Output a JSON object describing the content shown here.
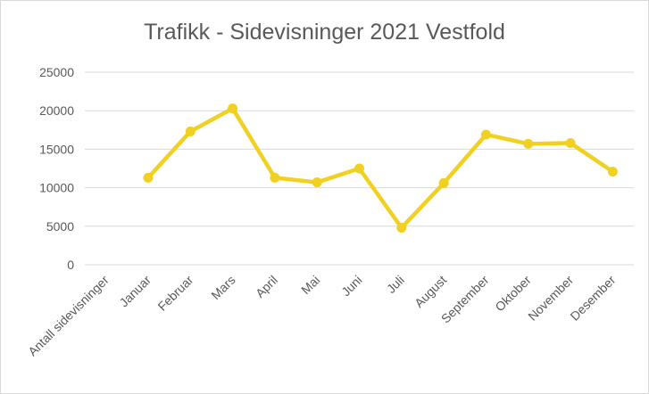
{
  "chart_data": {
    "type": "line",
    "title": "Trafikk - Sidevisninger 2021 Vestfold",
    "xlabel": "",
    "ylabel": "",
    "categories": [
      "Antall sidevisninger",
      "Januar",
      "Februar",
      "Mars",
      "April",
      "Mai",
      "Juni",
      "Juli",
      "August",
      "September",
      "Oktober",
      "November",
      "Desember"
    ],
    "series": [
      {
        "values": [
          null,
          11300,
          17300,
          20300,
          11300,
          10700,
          12500,
          4800,
          10600,
          16900,
          15700,
          15800,
          12100
        ]
      }
    ],
    "ylim": [
      0,
      25000
    ],
    "yticks": [
      "0",
      "5000",
      "10000",
      "15000",
      "20000",
      "25000"
    ],
    "grid": "horizontal",
    "legend": "none",
    "colors": {
      "line": "#f0d020",
      "grid": "#d9d9d9",
      "text": "#595959"
    }
  }
}
